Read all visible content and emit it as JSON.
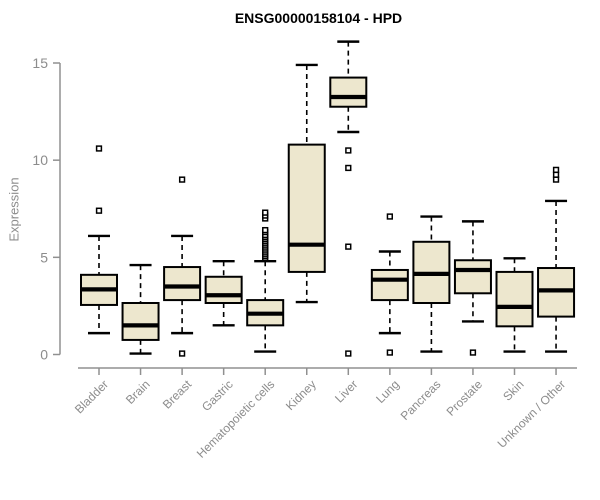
{
  "header": {
    "title": "ENSG00000158104 - HPD"
  },
  "chart_data": {
    "type": "boxplot",
    "title": "ENSG00000158104 - HPD",
    "xlabel": "",
    "ylabel": "Expression",
    "ylim": [
      0,
      15
    ],
    "yticks": [
      0,
      5,
      10,
      15
    ],
    "grid": false,
    "legend": "none",
    "categories": [
      "Bladder",
      "Brain",
      "Breast",
      "Gastric",
      "Hematopoietic cells",
      "Kidney",
      "Liver",
      "Lung",
      "Pancreas",
      "Prostate",
      "Skin",
      "Unknown / Other"
    ],
    "series": [
      {
        "label": "Bladder",
        "whisker_low": 1.1,
        "q1": 2.55,
        "median": 3.35,
        "q3": 4.1,
        "whisker_high": 6.1,
        "outliers": [
          7.4,
          10.6
        ]
      },
      {
        "label": "Brain",
        "whisker_low": 0.05,
        "q1": 0.75,
        "median": 1.5,
        "q3": 2.65,
        "whisker_high": 4.6,
        "outliers": []
      },
      {
        "label": "Breast",
        "whisker_low": 1.1,
        "q1": 2.8,
        "median": 3.5,
        "q3": 4.5,
        "whisker_high": 6.1,
        "outliers": [
          0.05,
          9.0
        ]
      },
      {
        "label": "Gastric",
        "whisker_low": 1.5,
        "q1": 2.65,
        "median": 3.05,
        "q3": 4.0,
        "whisker_high": 4.8,
        "outliers": []
      },
      {
        "label": "Hematopoietic cells",
        "whisker_low": 0.15,
        "q1": 1.5,
        "median": 2.1,
        "q3": 2.8,
        "whisker_high": 4.8,
        "outliers": [
          4.95,
          5.05,
          5.15,
          5.25,
          5.35,
          5.45,
          5.55,
          5.65,
          5.75,
          5.85,
          5.95,
          6.05,
          6.15,
          6.3,
          6.4,
          7.0,
          7.15,
          7.3
        ]
      },
      {
        "label": "Kidney",
        "whisker_low": 2.7,
        "q1": 4.25,
        "median": 5.65,
        "q3": 10.8,
        "whisker_high": 14.9,
        "outliers": []
      },
      {
        "label": "Liver",
        "whisker_low": 11.45,
        "q1": 12.75,
        "median": 13.25,
        "q3": 14.25,
        "whisker_high": 16.1,
        "outliers": [
          10.5,
          9.6,
          5.55,
          0.05
        ]
      },
      {
        "label": "Lung",
        "whisker_low": 1.1,
        "q1": 2.8,
        "median": 3.85,
        "q3": 4.35,
        "whisker_high": 5.3,
        "outliers": [
          7.1,
          0.1
        ]
      },
      {
        "label": "Pancreas",
        "whisker_low": 0.15,
        "q1": 2.65,
        "median": 4.15,
        "q3": 5.8,
        "whisker_high": 7.1,
        "outliers": []
      },
      {
        "label": "Prostate",
        "whisker_low": 1.7,
        "q1": 3.15,
        "median": 4.35,
        "q3": 4.85,
        "whisker_high": 6.85,
        "outliers": [
          0.1
        ]
      },
      {
        "label": "Skin",
        "whisker_low": 0.15,
        "q1": 1.45,
        "median": 2.45,
        "q3": 4.25,
        "whisker_high": 4.95,
        "outliers": []
      },
      {
        "label": "Unknown / Other",
        "whisker_low": 0.15,
        "q1": 1.95,
        "median": 3.3,
        "q3": 4.45,
        "whisker_high": 7.9,
        "outliers": [
          9.0,
          9.25,
          9.5
        ]
      }
    ],
    "colors": {
      "box_fill": "#EDE7CE",
      "box_stroke": "#000000",
      "median": "#000000",
      "whisker": "#000000",
      "axis": "#909090",
      "tick_label": "#8c8c8c",
      "title": "#000000"
    }
  }
}
